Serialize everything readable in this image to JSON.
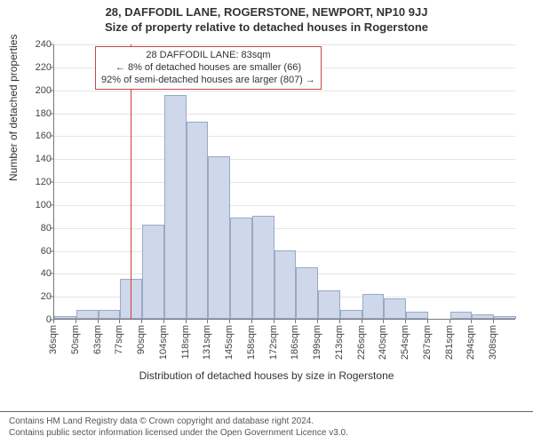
{
  "title_line1": "28, DAFFODIL LANE, ROGERSTONE, NEWPORT, NP10 9JJ",
  "title_line2": "Size of property relative to detached houses in Rogerstone",
  "chart": {
    "type": "histogram",
    "ylabel": "Number of detached properties",
    "xlabel": "Distribution of detached houses by size in Rogerstone",
    "ylim": [
      0,
      240
    ],
    "ytick_step": 20,
    "yticks": [
      0,
      20,
      40,
      60,
      80,
      100,
      120,
      140,
      160,
      180,
      200,
      220,
      240
    ],
    "xtick_labels": [
      "36sqm",
      "50sqm",
      "63sqm",
      "77sqm",
      "90sqm",
      "104sqm",
      "118sqm",
      "131sqm",
      "145sqm",
      "158sqm",
      "172sqm",
      "186sqm",
      "199sqm",
      "213sqm",
      "226sqm",
      "240sqm",
      "254sqm",
      "267sqm",
      "281sqm",
      "294sqm",
      "308sqm"
    ],
    "bar_values": [
      2,
      8,
      8,
      35,
      82,
      195,
      172,
      142,
      88,
      90,
      60,
      45,
      25,
      8,
      22,
      18,
      6,
      0,
      6,
      4,
      2
    ],
    "bar_fill": "#cfd8ea",
    "bar_border": "#9aa8c7",
    "grid_color": "#e5e5e5",
    "axis_color": "#777777",
    "background_color": "#ffffff",
    "reference_line": {
      "x_value_sqm": 83,
      "color": "#d43a2f"
    },
    "annotation": {
      "line1": "28 DAFFODIL LANE: 83sqm",
      "line2": "← 8% of detached houses are smaller (66)",
      "line3": "92% of semi-detached houses are larger (807) →",
      "border_color": "#c44"
    },
    "tick_fontsize": 11,
    "label_fontsize": 12,
    "title_fontsize": 13
  },
  "footer": {
    "line1": "Contains HM Land Registry data © Crown copyright and database right 2024.",
    "line2": "Contains public sector information licensed under the Open Government Licence v3.0."
  }
}
